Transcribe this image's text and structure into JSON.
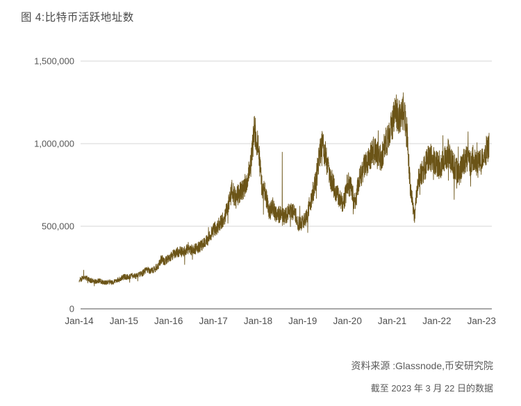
{
  "header": {
    "title": "图 4:比特币活跃地址数"
  },
  "footer": {
    "source": "资料来源 :Glassnode,币安研究院",
    "as_of": "截至 2023 年 3 月 22 日的数据"
  },
  "chart_data": {
    "type": "line",
    "title": "图 4:比特币活跃地址数",
    "xlabel": "",
    "ylabel": "",
    "ylim": [
      0,
      1500000
    ],
    "grid": "horizontal",
    "legend": "none",
    "line_color": "#6b5417",
    "gridline_color": "#d6d6d6",
    "axis_color": "#8a8a8a",
    "y_ticks": [
      0,
      500000,
      1000000,
      1500000
    ],
    "y_tick_labels": [
      "0",
      "500,000",
      "1,000,000",
      "1,500,000"
    ],
    "x_tick_labels": [
      "Jan-14",
      "Jan-15",
      "Jan-16",
      "Jan-17",
      "Jan-18",
      "Jan-19",
      "Jan-20",
      "Jan-21",
      "Jan-22",
      "Jan-23"
    ],
    "noise_pct": 0.095,
    "spike_probability": 0.015,
    "spike_factor": 2.6,
    "anomalies": [
      {
        "month_index": 54.5,
        "value_thousands": 950
      }
    ],
    "series": [
      {
        "name": "比特币活跃地址数",
        "start_month": "2014-01",
        "end_month": "2023-03",
        "unit": "active addresses",
        "monthly_values_thousands": [
          170,
          195,
          185,
          172,
          165,
          170,
          166,
          158,
          163,
          158,
          174,
          182,
          192,
          194,
          199,
          197,
          206,
          216,
          236,
          229,
          239,
          253,
          300,
          287,
          306,
          326,
          341,
          346,
          341,
          366,
          356,
          361,
          371,
          386,
          406,
          436,
          476,
          491,
          526,
          546,
          631,
          721,
          661,
          706,
          726,
          766,
          861,
          1080,
          1000,
          740,
          700,
          580,
          620,
          560,
          580,
          560,
          580,
          590,
          570,
          510,
          520,
          560,
          640,
          720,
          860,
          1000,
          950,
          820,
          760,
          700,
          660,
          640,
          760,
          740,
          640,
          760,
          840,
          880,
          920,
          960,
          930,
          920,
          980,
          1050,
          1120,
          1200,
          1150,
          1200,
          1050,
          700,
          570,
          780,
          820,
          870,
          920,
          900,
          880,
          850,
          900,
          950,
          880,
          850,
          820,
          880,
          910,
          880,
          930,
          870,
          900,
          950,
          980
        ]
      }
    ],
    "as_of_note": "截至 2023 年 3 月 22 日的数据"
  }
}
